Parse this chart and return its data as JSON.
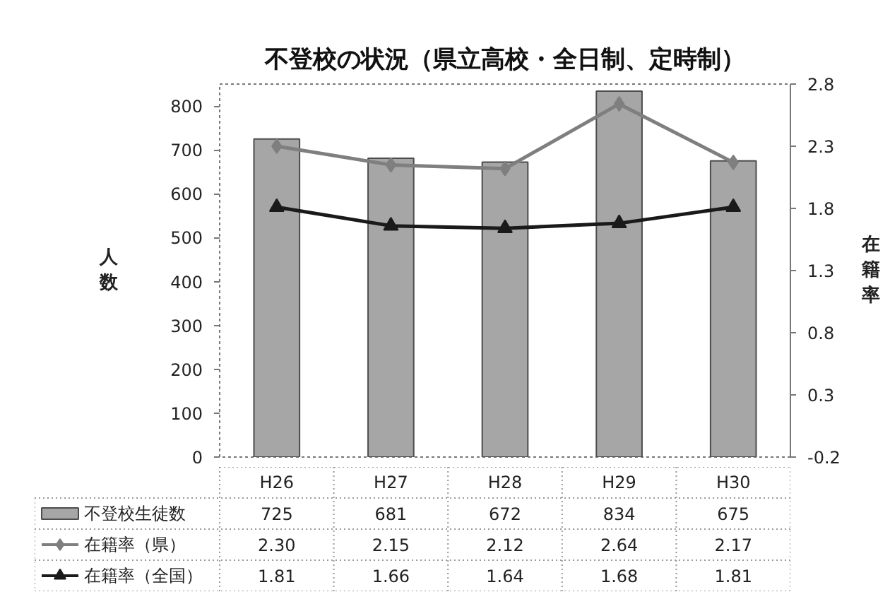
{
  "chart_data": {
    "type": "bar",
    "title": "不登校の状況（県立高校・全日制、定時制）",
    "ylabel": "人数",
    "y2label": "在籍率",
    "categories": [
      "H26",
      "H27",
      "H28",
      "H29",
      "H30"
    ],
    "series": [
      {
        "name": "不登校生徒数",
        "color": "#a6a6a6",
        "values": [
          725,
          681,
          672,
          834,
          675
        ],
        "value_labels": [
          "725",
          "681",
          "672",
          "834",
          "675"
        ]
      },
      {
        "name": "在籍率（県）",
        "type": "line",
        "axis": "y2",
        "marker": "diamond",
        "color": "#7f7f7f",
        "values": [
          2.3,
          2.15,
          2.12,
          2.64,
          2.17
        ],
        "value_labels": [
          "2.30",
          "2.15",
          "2.12",
          "2.64",
          "2.17"
        ]
      },
      {
        "name": "在籍率（全国）",
        "type": "line",
        "axis": "y2",
        "marker": "triangle",
        "color": "#1a1a1a",
        "values": [
          1.81,
          1.66,
          1.64,
          1.68,
          1.81
        ],
        "value_labels": [
          "1.81",
          "1.66",
          "1.64",
          "1.68",
          "1.81"
        ]
      }
    ],
    "ylim": [
      0,
      850
    ],
    "yticks": [
      0,
      100,
      200,
      300,
      400,
      500,
      600,
      700,
      800
    ],
    "y2lim": [
      -0.2,
      2.8
    ],
    "y2ticks": [
      -0.2,
      0.3,
      0.8,
      1.3,
      1.8,
      2.3,
      2.8
    ],
    "legend": "bottom left"
  }
}
